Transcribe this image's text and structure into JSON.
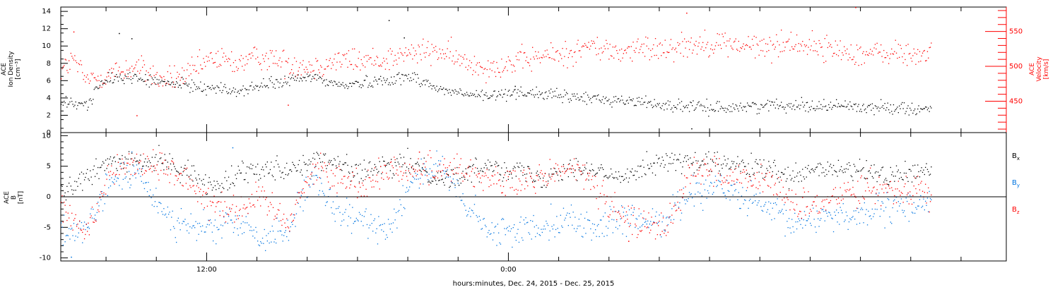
{
  "chart_data": [
    {
      "type": "scatter",
      "panel": "top",
      "left_axis": {
        "label_lines": [
          "ACE",
          "Ion Density",
          "[cm⁻³]"
        ],
        "range": [
          0,
          14.5
        ],
        "ticks": [
          0,
          2,
          4,
          6,
          8,
          10,
          12,
          14
        ],
        "color": "#000000"
      },
      "right_axis": {
        "label_lines": [
          "ACE",
          "Velocity",
          "[km/s]"
        ],
        "range": [
          405,
          585
        ],
        "ticks": [
          450,
          500,
          550
        ],
        "color": "#ff0000"
      },
      "series": [
        {
          "axis": "left",
          "color": "#000000",
          "keypoints": [
            [
              0,
              3.5
            ],
            [
              1,
              3.2
            ],
            [
              1.5,
              5.5
            ],
            [
              2,
              6.2
            ],
            [
              2.5,
              6.5
            ],
            [
              3,
              6.3
            ],
            [
              4,
              5.8
            ],
            [
              5,
              5.5
            ],
            [
              6,
              5.2
            ],
            [
              7,
              4.8
            ],
            [
              8,
              5.5
            ],
            [
              9,
              6.0
            ],
            [
              10,
              6.5
            ],
            [
              11,
              5.5
            ],
            [
              12,
              5.8
            ],
            [
              13,
              6.2
            ],
            [
              14,
              6.5
            ],
            [
              15,
              5.0
            ],
            [
              16,
              4.5
            ],
            [
              17,
              4.2
            ],
            [
              18,
              4.8
            ],
            [
              19,
              4.5
            ],
            [
              20,
              4.2
            ],
            [
              21,
              4.0
            ],
            [
              22,
              3.8
            ],
            [
              23,
              3.6
            ],
            [
              24,
              3.2
            ],
            [
              25,
              3.0
            ],
            [
              26,
              2.9
            ],
            [
              27,
              3.0
            ],
            [
              28,
              3.2
            ],
            [
              29,
              3.3
            ],
            [
              30,
              3.1
            ],
            [
              31,
              3.2
            ],
            [
              32,
              2.9
            ],
            [
              33,
              3.0
            ],
            [
              34.5,
              2.7
            ]
          ],
          "noise": 0.5,
          "spikes": [
            [
              2.3,
              11.5
            ],
            [
              2.8,
              10.9
            ],
            [
              13.0,
              13.0
            ],
            [
              13.6,
              11.0
            ],
            [
              18.0,
              5.4
            ],
            [
              25.0,
              0.5
            ]
          ]
        },
        {
          "axis": "right",
          "color": "#ff0000",
          "keypoints": [
            [
              0,
              495
            ],
            [
              0.5,
              510
            ],
            [
              1,
              480
            ],
            [
              2,
              490
            ],
            [
              3,
              500
            ],
            [
              4,
              480
            ],
            [
              5,
              488
            ],
            [
              6,
              512
            ],
            [
              7,
              505
            ],
            [
              8,
              515
            ],
            [
              9,
              505
            ],
            [
              10,
              500
            ],
            [
              11,
              510
            ],
            [
              12,
              508
            ],
            [
              13,
              512
            ],
            [
              14,
              520
            ],
            [
              15,
              522
            ],
            [
              16,
              506
            ],
            [
              17,
              500
            ],
            [
              18,
              505
            ],
            [
              19,
              515
            ],
            [
              20,
              518
            ],
            [
              21,
              530
            ],
            [
              22,
              520
            ],
            [
              23,
              525
            ],
            [
              24,
              528
            ],
            [
              25,
              532
            ],
            [
              26,
              535
            ],
            [
              27,
              530
            ],
            [
              28,
              528
            ],
            [
              29,
              535
            ],
            [
              30,
              528
            ],
            [
              31,
              522
            ],
            [
              32,
              518
            ],
            [
              33,
              520
            ],
            [
              34,
              515
            ],
            [
              34.5,
              525
            ]
          ],
          "noise": 13,
          "spikes": [
            [
              31.5,
              585
            ],
            [
              24.8,
              577
            ],
            [
              0.5,
              550
            ],
            [
              3.0,
              430
            ],
            [
              9.0,
              445
            ]
          ]
        }
      ]
    },
    {
      "type": "scatter",
      "panel": "bottom",
      "left_axis": {
        "label_lines": [
          "ACE",
          "B",
          "[nT]"
        ],
        "range": [
          -10.5,
          10.5
        ],
        "ticks": [
          -10,
          -5,
          0,
          5,
          10
        ],
        "color": "#000000"
      },
      "zero_line": true,
      "legend": {
        "placement": "right",
        "entries": [
          {
            "name": "Bx",
            "base": "B",
            "sub": "x",
            "color": "#000000"
          },
          {
            "name": "By",
            "base": "B",
            "sub": "y",
            "color": "#0074e0"
          },
          {
            "name": "Bz",
            "base": "B",
            "sub": "z",
            "color": "#ff0000"
          }
        ]
      },
      "series": [
        {
          "name": "Bx",
          "color": "#000000",
          "keypoints": [
            [
              0,
              1.0
            ],
            [
              1,
              3.0
            ],
            [
              2,
              6.0
            ],
            [
              3,
              5.5
            ],
            [
              4,
              6.0
            ],
            [
              5,
              4.0
            ],
            [
              6,
              1.5
            ],
            [
              7,
              4.0
            ],
            [
              8,
              5.0
            ],
            [
              9,
              4.5
            ],
            [
              10,
              6.0
            ],
            [
              11,
              5.5
            ],
            [
              12,
              4.0
            ],
            [
              13,
              5.0
            ],
            [
              14,
              5.5
            ],
            [
              15,
              3.0
            ],
            [
              16,
              3.5
            ],
            [
              17,
              5.5
            ],
            [
              18,
              4.5
            ],
            [
              19,
              3.0
            ],
            [
              20,
              5.0
            ],
            [
              21,
              4.5
            ],
            [
              22,
              3.0
            ],
            [
              23,
              5.0
            ],
            [
              24,
              6.0
            ],
            [
              25,
              5.5
            ],
            [
              26,
              5.5
            ],
            [
              27,
              5.0
            ],
            [
              28,
              4.5
            ],
            [
              29,
              3.0
            ],
            [
              30,
              4.5
            ],
            [
              31,
              4.5
            ],
            [
              32,
              4.0
            ],
            [
              33,
              3.5
            ],
            [
              34,
              4.0
            ],
            [
              34.5,
              5.0
            ]
          ],
          "noise": 1.3
        },
        {
          "name": "By",
          "color": "#0074e0",
          "keypoints": [
            [
              0,
              -5.0
            ],
            [
              1,
              -6.0
            ],
            [
              2,
              3.0
            ],
            [
              3,
              4.0
            ],
            [
              4,
              -2.0
            ],
            [
              5,
              -5.0
            ],
            [
              6,
              -5.0
            ],
            [
              7,
              -4.0
            ],
            [
              8,
              -7.0
            ],
            [
              9,
              -5.0
            ],
            [
              10,
              3.0
            ],
            [
              11,
              -3.0
            ],
            [
              12,
              -4.0
            ],
            [
              13,
              -5.0
            ],
            [
              14,
              3.5
            ],
            [
              15,
              5.0
            ],
            [
              16,
              -1.0
            ],
            [
              17,
              -6.0
            ],
            [
              18,
              -5.5
            ],
            [
              19,
              -4.5
            ],
            [
              20,
              -3.5
            ],
            [
              21,
              -5.0
            ],
            [
              22,
              -4.0
            ],
            [
              23,
              -4.0
            ],
            [
              24,
              -3.5
            ],
            [
              25,
              1.0
            ],
            [
              26,
              2.0
            ],
            [
              27,
              0.0
            ],
            [
              28,
              -2.0
            ],
            [
              29,
              -4.5
            ],
            [
              30,
              -3.0
            ],
            [
              31,
              -3.0
            ],
            [
              32,
              -2.5
            ],
            [
              33,
              -2.0
            ],
            [
              34,
              -1.0
            ],
            [
              34.5,
              -0.5
            ]
          ],
          "noise": 1.8,
          "spikes": [
            [
              6.8,
              8.1
            ],
            [
              0.4,
              -9.8
            ]
          ]
        },
        {
          "name": "Bz",
          "color": "#ff0000",
          "keypoints": [
            [
              0,
              -2.0
            ],
            [
              1,
              -6.0
            ],
            [
              2,
              5.0
            ],
            [
              3,
              5.5
            ],
            [
              4,
              5.0
            ],
            [
              5,
              3.0
            ],
            [
              6,
              -1.0
            ],
            [
              7,
              -2.0
            ],
            [
              8,
              0.0
            ],
            [
              9,
              -4.0
            ],
            [
              10,
              5.0
            ],
            [
              11,
              3.0
            ],
            [
              12,
              2.0
            ],
            [
              13,
              5.0
            ],
            [
              14,
              4.0
            ],
            [
              15,
              5.0
            ],
            [
              16,
              4.5
            ],
            [
              17,
              3.0
            ],
            [
              18,
              2.0
            ],
            [
              19,
              3.0
            ],
            [
              20,
              5.0
            ],
            [
              21,
              3.0
            ],
            [
              22,
              -3.0
            ],
            [
              23,
              -4.0
            ],
            [
              24,
              -5.0
            ],
            [
              25,
              5.0
            ],
            [
              26,
              4.0
            ],
            [
              27,
              2.5
            ],
            [
              28,
              3.0
            ],
            [
              29,
              -1.0
            ],
            [
              30,
              -2.0
            ],
            [
              31,
              1.0
            ],
            [
              32,
              2.0
            ],
            [
              33,
              1.0
            ],
            [
              34,
              2.0
            ],
            [
              34.5,
              -1.0
            ]
          ],
          "noise": 1.8,
          "spikes": [
            [
              14.2,
              7.4
            ],
            [
              22.5,
              -7.2
            ]
          ]
        }
      ]
    }
  ],
  "x_axis": {
    "range_hours": [
      6.2,
      43.8
    ],
    "data_end_hour": 40.8,
    "major_ticks": [
      {
        "hour": 12,
        "label": "12:00"
      },
      {
        "hour": 24,
        "label": "0:00"
      }
    ],
    "minor_tick_hours": [
      8,
      10,
      14,
      16,
      18,
      20,
      22,
      26,
      28,
      30,
      32,
      34,
      36,
      38,
      40,
      42
    ],
    "title": "hours:minutes, Dec. 24, 2015 - Dec. 25, 2015"
  }
}
